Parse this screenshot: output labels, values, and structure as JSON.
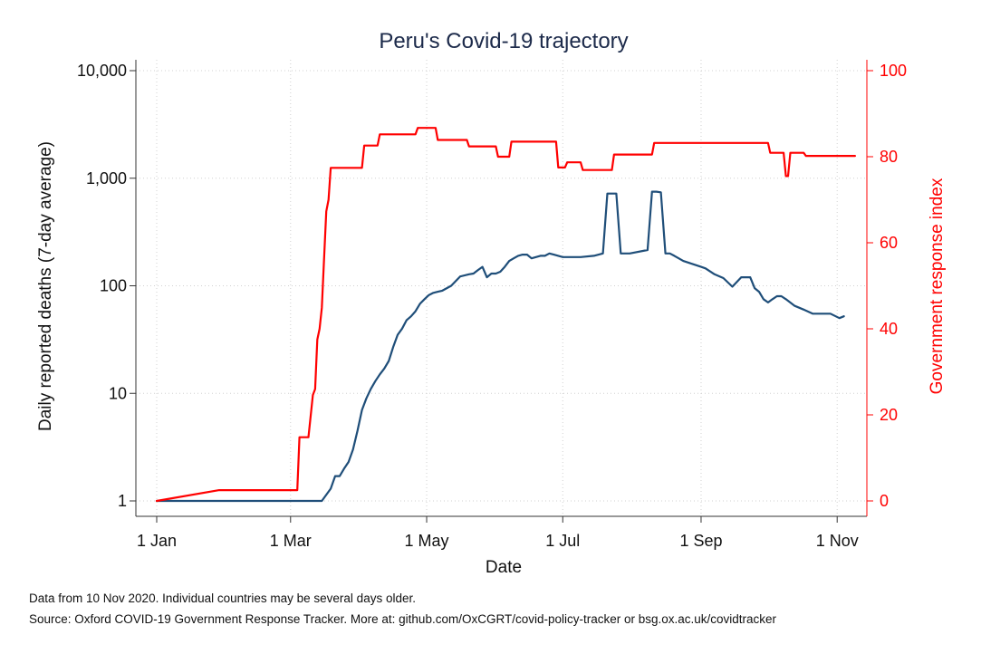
{
  "chart_data": {
    "type": "line",
    "title": "Peru's Covid-19 trajectory",
    "xlabel": "Date",
    "ylabel": "Daily reported deaths (7-day average)",
    "y2label": "Government response index",
    "x_tick_labels": [
      "1 Jan",
      "1 Mar",
      "1 May",
      "1 Jul",
      "1 Sep",
      "1 Nov"
    ],
    "x_tick_days": [
      0,
      60,
      121,
      182,
      244,
      305
    ],
    "y_scale": "log",
    "y_tick_values": [
      1,
      10,
      100,
      1000,
      10000
    ],
    "y_tick_labels": [
      "1",
      "10",
      "100",
      "1,000",
      "10,000"
    ],
    "ylim": [
      1,
      10000
    ],
    "y2_tick_values": [
      0,
      20,
      40,
      60,
      80,
      100
    ],
    "y2_tick_labels": [
      "0",
      "20",
      "40",
      "60",
      "80",
      "100"
    ],
    "y2lim": [
      0,
      100
    ],
    "grid": true,
    "colors": {
      "deaths": "#1f4e79",
      "response": "#ff0000",
      "y2_axis": "#ff0000",
      "title": "#1c2a4a"
    },
    "series": [
      {
        "key": "deaths",
        "axis": "left",
        "x_unit": "day of 2020 (0 = 1 Jan)",
        "x": [
          0,
          74,
          78,
          80,
          82,
          84,
          86,
          88,
          90,
          92,
          94,
          96,
          98,
          100,
          102,
          104,
          106,
          108,
          110,
          112,
          114,
          116,
          118,
          120,
          122,
          124,
          126,
          128,
          132,
          136,
          140,
          142,
          144,
          146,
          148,
          150,
          152,
          154,
          156,
          158,
          160,
          162,
          164,
          166,
          168,
          170,
          172,
          174,
          176,
          178,
          180,
          182,
          184,
          190,
          196,
          200,
          202,
          204,
          206,
          208,
          210,
          212,
          220,
          222,
          224,
          226,
          228,
          230,
          232,
          234,
          236,
          240,
          244,
          246,
          250,
          254,
          258,
          262,
          266,
          268,
          270,
          272,
          274,
          276,
          278,
          280,
          282,
          286,
          290,
          294,
          298,
          302,
          306,
          308
        ],
        "y": [
          1,
          1,
          1.3,
          1.7,
          1.7,
          2,
          2.3,
          3,
          4.5,
          7,
          9,
          11,
          13,
          15,
          17,
          20,
          27,
          35,
          40,
          48,
          52,
          58,
          68,
          75,
          82,
          86,
          88,
          90,
          100,
          122,
          128,
          130,
          140,
          150,
          120,
          130,
          130,
          135,
          150,
          170,
          180,
          190,
          195,
          195,
          180,
          185,
          190,
          190,
          200,
          195,
          190,
          185,
          185,
          185,
          190,
          200,
          720,
          720,
          720,
          200,
          200,
          200,
          215,
          750,
          750,
          740,
          200,
          200,
          190,
          180,
          170,
          160,
          150,
          145,
          128,
          118,
          98,
          120,
          120,
          95,
          88,
          75,
          70,
          75,
          80,
          80,
          75,
          65,
          60,
          55,
          55,
          55,
          50,
          52
        ]
      },
      {
        "key": "response",
        "axis": "right",
        "x_unit": "day of 2020 (0 = 1 Jan)",
        "x": [
          0,
          28,
          63,
          64,
          68,
          70,
          71,
          72,
          73,
          74,
          75,
          76,
          77,
          78,
          92,
          93,
          99,
          100,
          116,
          117,
          125,
          126,
          139,
          140,
          152,
          153,
          158,
          159,
          179,
          180,
          183,
          184,
          190,
          191,
          204,
          205,
          222,
          223,
          274,
          275,
          281,
          282,
          283,
          284,
          290,
          291,
          313
        ],
        "y": [
          0,
          2.5,
          2.5,
          14.8,
          14.8,
          24.6,
          26,
          37.5,
          40,
          44.9,
          56,
          67.3,
          70,
          77.4,
          77.4,
          82.6,
          82.6,
          85.2,
          85.2,
          86.7,
          86.7,
          83.9,
          83.9,
          82.4,
          82.4,
          80,
          80,
          83.5,
          83.5,
          77.5,
          77.5,
          78.7,
          78.7,
          76.9,
          76.9,
          80.5,
          80.5,
          83.2,
          83.2,
          80.9,
          80.9,
          75.5,
          75.5,
          80.9,
          80.9,
          80.2,
          80.2
        ]
      }
    ]
  },
  "notes": {
    "line1": "Data from 10 Nov 2020. Individual countries may be several days older.",
    "line2": "Source: Oxford COVID-19 Government Response Tracker. More at: github.com/OxCGRT/covid-policy-tracker or bsg.ox.ac.uk/covidtracker"
  }
}
